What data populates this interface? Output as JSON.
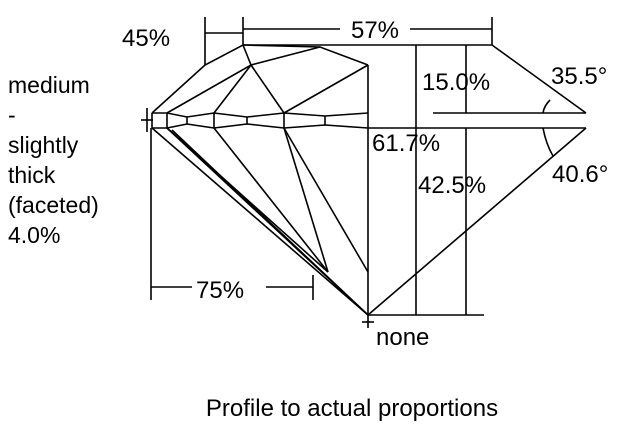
{
  "labels": {
    "crown_angle_width": "45%",
    "table": "57%",
    "girdle_lines": [
      "medium",
      "-",
      "slightly",
      "thick",
      "(faceted)",
      "4.0%"
    ],
    "crown_height": "15.0%",
    "crown_angle": "35.5°",
    "total_depth": "61.7%",
    "pavilion_depth": "42.5%",
    "pavilion_angle": "40.6°",
    "lower_half": "75%",
    "culet": "none",
    "caption": "Profile to actual proportions"
  },
  "colors": {
    "line": "#000000",
    "background": "#ffffff"
  }
}
